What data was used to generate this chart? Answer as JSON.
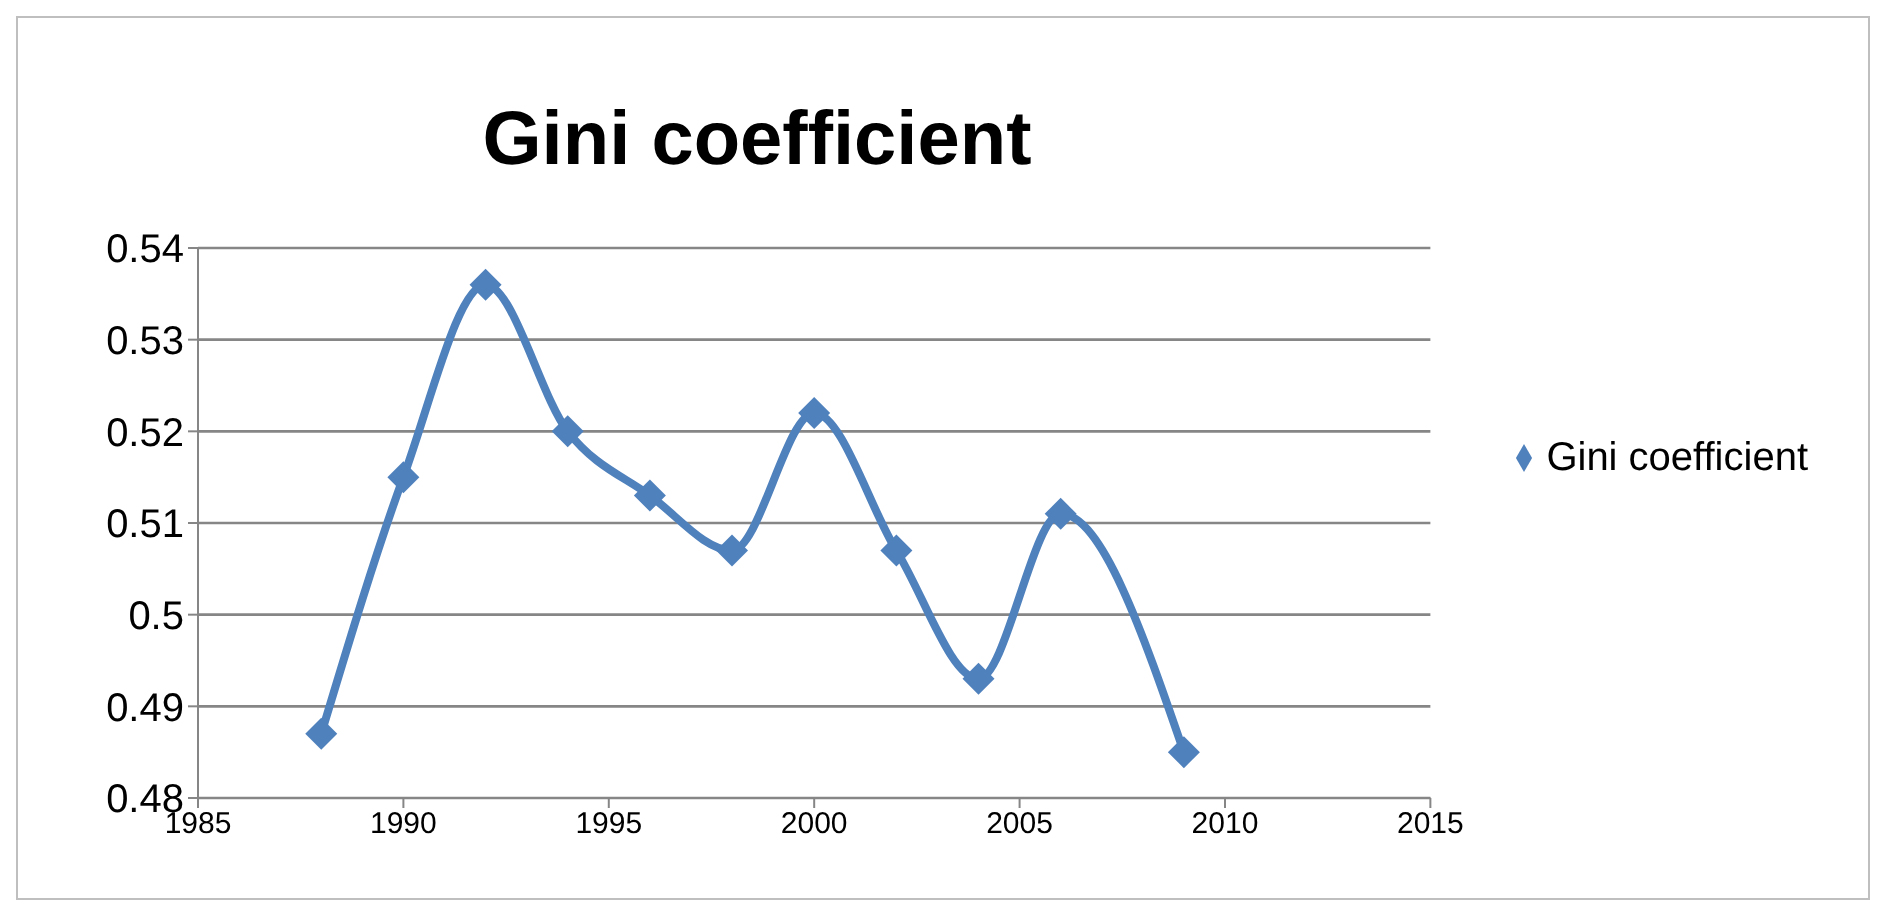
{
  "chart_data": {
    "type": "line",
    "title": "Gini coefficient",
    "x": [
      1988,
      1990,
      1992,
      1994,
      1996,
      1998,
      2000,
      2002,
      2004,
      2006,
      2009
    ],
    "series": [
      {
        "name": "Gini coefficient",
        "color": "#4f81bd",
        "values": [
          0.487,
          0.515,
          0.536,
          0.52,
          0.513,
          0.507,
          0.522,
          0.507,
          0.493,
          0.511,
          0.485
        ]
      }
    ],
    "xlim": [
      1985,
      2015
    ],
    "xticks": [
      1985,
      1990,
      1995,
      2000,
      2005,
      2010,
      2015
    ],
    "ylim": [
      0.48,
      0.54
    ],
    "yticks": [
      0.48,
      0.49,
      0.5,
      0.51,
      0.52,
      0.53,
      0.54
    ],
    "grid": "y",
    "legend": "right",
    "marker": "diamond"
  }
}
